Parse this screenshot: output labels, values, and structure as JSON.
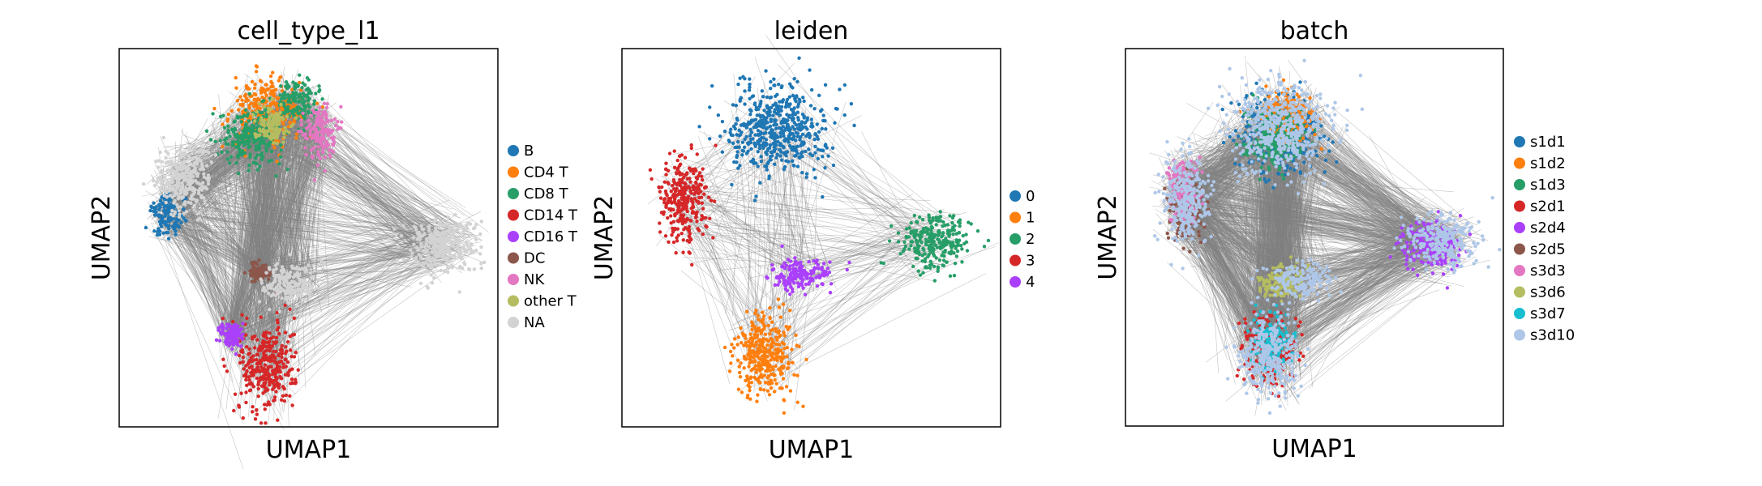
{
  "chart_data": [
    {
      "type": "scatter",
      "title": "cell_type_l1",
      "xlabel": "UMAP1",
      "ylabel": "UMAP2",
      "grid": false,
      "legend_position": "right",
      "x_range": [
        0,
        10
      ],
      "y_range": [
        0,
        10
      ],
      "series": [
        {
          "name": "B",
          "color": "#1f77b4",
          "clusters": [
            {
              "cx": 1.3,
              "cy": 5.6,
              "rx": 0.5,
              "ry": 0.6
            }
          ]
        },
        {
          "name": "CD4 T",
          "color": "#ff7f0e",
          "clusters": [
            {
              "cx": 3.9,
              "cy": 8.3,
              "rx": 1.0,
              "ry": 1.0
            }
          ]
        },
        {
          "name": "CD8 T",
          "color": "#279e68",
          "clusters": [
            {
              "cx": 3.5,
              "cy": 7.7,
              "rx": 0.9,
              "ry": 0.8
            },
            {
              "cx": 4.7,
              "cy": 8.6,
              "rx": 0.6,
              "ry": 0.6
            }
          ]
        },
        {
          "name": "CD14 T",
          "color": "#d62728",
          "clusters": [
            {
              "cx": 3.9,
              "cy": 1.6,
              "rx": 0.8,
              "ry": 1.3
            }
          ]
        },
        {
          "name": "CD16 T",
          "color": "#aa40fc",
          "clusters": [
            {
              "cx": 3.0,
              "cy": 2.4,
              "rx": 0.35,
              "ry": 0.45
            }
          ]
        },
        {
          "name": "DC",
          "color": "#8c564b",
          "clusters": [
            {
              "cx": 3.7,
              "cy": 4.1,
              "rx": 0.3,
              "ry": 0.3
            }
          ]
        },
        {
          "name": "NK",
          "color": "#e377c2",
          "clusters": [
            {
              "cx": 5.3,
              "cy": 7.8,
              "rx": 0.45,
              "ry": 0.8
            }
          ]
        },
        {
          "name": "other T",
          "color": "#b5bd61",
          "clusters": [
            {
              "cx": 4.0,
              "cy": 8.0,
              "rx": 0.5,
              "ry": 0.5
            }
          ]
        },
        {
          "name": "NA",
          "color": "#d3d3d3",
          "clusters": [
            {
              "cx": 8.5,
              "cy": 4.8,
              "rx": 1.1,
              "ry": 0.8
            },
            {
              "cx": 1.7,
              "cy": 6.5,
              "rx": 0.8,
              "ry": 1.0
            },
            {
              "cx": 4.5,
              "cy": 3.8,
              "rx": 0.8,
              "ry": 0.6
            }
          ]
        }
      ]
    },
    {
      "type": "scatter",
      "title": "leiden",
      "xlabel": "UMAP1",
      "ylabel": "UMAP2",
      "grid": false,
      "legend_position": "right",
      "x_range": [
        0,
        10
      ],
      "y_range": [
        0,
        10
      ],
      "series": [
        {
          "name": "0",
          "color": "#1f77b4",
          "clusters": [
            {
              "cx": 4.1,
              "cy": 7.9,
              "rx": 1.4,
              "ry": 1.3
            }
          ]
        },
        {
          "name": "1",
          "color": "#ff7f0e",
          "clusters": [
            {
              "cx": 3.8,
              "cy": 1.9,
              "rx": 0.9,
              "ry": 1.2
            }
          ]
        },
        {
          "name": "2",
          "color": "#279e68",
          "clusters": [
            {
              "cx": 8.3,
              "cy": 4.9,
              "rx": 1.0,
              "ry": 0.8
            }
          ]
        },
        {
          "name": "3",
          "color": "#d62728",
          "clusters": [
            {
              "cx": 1.6,
              "cy": 6.0,
              "rx": 0.7,
              "ry": 1.3
            }
          ]
        },
        {
          "name": "4",
          "color": "#aa40fc",
          "clusters": [
            {
              "cx": 4.7,
              "cy": 4.0,
              "rx": 0.9,
              "ry": 0.45
            }
          ]
        }
      ]
    },
    {
      "type": "scatter",
      "title": "batch",
      "xlabel": "UMAP1",
      "ylabel": "UMAP2",
      "grid": false,
      "legend_position": "right",
      "x_range": [
        0,
        10
      ],
      "y_range": [
        0,
        10
      ],
      "series": [
        {
          "name": "s1d1",
          "color": "#1f77b4",
          "clusters": [
            {
              "cx": 4.1,
              "cy": 7.7,
              "rx": 1.2,
              "ry": 1.1
            }
          ]
        },
        {
          "name": "s1d2",
          "color": "#ff7f0e",
          "clusters": [
            {
              "cx": 4.3,
              "cy": 8.2,
              "rx": 0.8,
              "ry": 0.7
            }
          ]
        },
        {
          "name": "s1d3",
          "color": "#279e68",
          "clusters": [
            {
              "cx": 3.9,
              "cy": 7.6,
              "rx": 0.9,
              "ry": 0.8
            }
          ]
        },
        {
          "name": "s2d1",
          "color": "#d62728",
          "clusters": [
            {
              "cx": 3.8,
              "cy": 2.0,
              "rx": 0.7,
              "ry": 1.0
            }
          ]
        },
        {
          "name": "s2d4",
          "color": "#aa40fc",
          "clusters": [
            {
              "cx": 8.1,
              "cy": 4.8,
              "rx": 0.9,
              "ry": 0.7
            }
          ]
        },
        {
          "name": "s2d5",
          "color": "#8c564b",
          "clusters": [
            {
              "cx": 1.6,
              "cy": 5.8,
              "rx": 0.5,
              "ry": 1.0
            }
          ]
        },
        {
          "name": "s3d3",
          "color": "#e377c2",
          "clusters": [
            {
              "cx": 1.5,
              "cy": 6.3,
              "rx": 0.5,
              "ry": 0.9
            }
          ]
        },
        {
          "name": "s3d6",
          "color": "#b5bd61",
          "clusters": [
            {
              "cx": 4.2,
              "cy": 3.8,
              "rx": 0.7,
              "ry": 0.5
            }
          ]
        },
        {
          "name": "s3d7",
          "color": "#17becf",
          "clusters": [
            {
              "cx": 3.9,
              "cy": 2.2,
              "rx": 0.6,
              "ry": 0.8
            }
          ]
        },
        {
          "name": "s3d10",
          "color": "#aec7e8",
          "clusters": [
            {
              "cx": 4.1,
              "cy": 7.9,
              "rx": 1.4,
              "ry": 1.3
            },
            {
              "cx": 3.8,
              "cy": 1.9,
              "rx": 0.9,
              "ry": 1.2
            },
            {
              "cx": 8.3,
              "cy": 4.9,
              "rx": 1.0,
              "ry": 0.8
            },
            {
              "cx": 1.6,
              "cy": 6.0,
              "rx": 0.7,
              "ry": 1.3
            },
            {
              "cx": 4.6,
              "cy": 3.9,
              "rx": 0.9,
              "ry": 0.5
            }
          ]
        }
      ]
    }
  ]
}
